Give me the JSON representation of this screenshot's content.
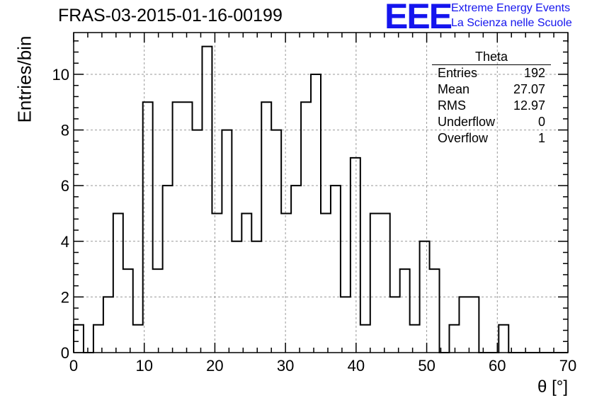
{
  "header": {
    "title": "FRAS-03-2015-01-16-00199",
    "logo_text": "EEE",
    "logo_line1": "Extreme Energy Events",
    "logo_line2": "La Scienza nelle Scuole"
  },
  "stats": {
    "name": "Theta",
    "rows": [
      {
        "label": "Entries",
        "value": "192"
      },
      {
        "label": "Mean",
        "value": "27.07"
      },
      {
        "label": "RMS",
        "value": "12.97"
      },
      {
        "label": "Underflow",
        "value": "0"
      },
      {
        "label": "Overflow",
        "value": "1"
      }
    ]
  },
  "chart_data": {
    "type": "histogram",
    "xlabel": "θ [°]",
    "ylabel": "Entries/bin",
    "xlim": [
      0,
      70
    ],
    "ylim": [
      0,
      11.5
    ],
    "bin_width": 1.4,
    "bin_edges_start": 0,
    "values": [
      1,
      0,
      1,
      2,
      5,
      3,
      1,
      9,
      3,
      6,
      9,
      9,
      8,
      11,
      5,
      8,
      4,
      5,
      4,
      9,
      8,
      5,
      6,
      9,
      10,
      5,
      6,
      2,
      7,
      1,
      5,
      5,
      2,
      3,
      1,
      4,
      3,
      0,
      1,
      2,
      2,
      0,
      0,
      1,
      0,
      0,
      0,
      0,
      0,
      0
    ],
    "x_ticks": [
      0,
      10,
      20,
      30,
      40,
      50,
      60,
      70
    ],
    "y_ticks": [
      0,
      2,
      4,
      6,
      8,
      10
    ],
    "grid": true,
    "line_color": "#000000"
  }
}
